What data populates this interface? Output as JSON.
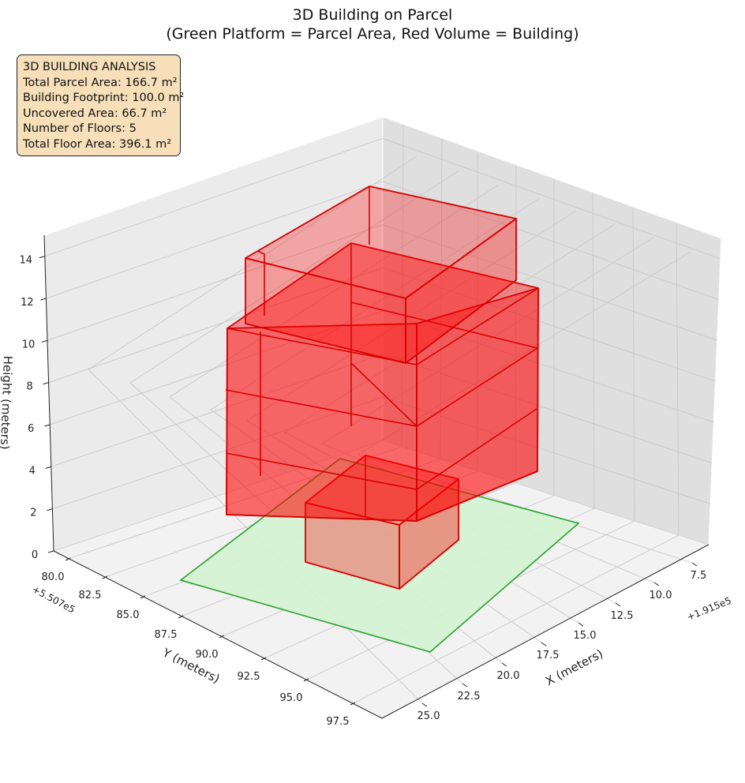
{
  "chart_data": {
    "type": "3d-bar",
    "title": "3D Building on Parcel",
    "subtitle": "(Green Platform = Parcel Area, Red Volume = Building)",
    "x_axis": {
      "label": "X (meters)",
      "offset": "+1.915e5",
      "ticks": [
        "7.5",
        "10.0",
        "12.5",
        "15.0",
        "17.5",
        "20.0",
        "22.5",
        "25.0"
      ]
    },
    "y_axis": {
      "label": "Y (meters)",
      "offset": "+5.507e5",
      "ticks": [
        "80.0",
        "82.5",
        "85.0",
        "87.5",
        "90.0",
        "92.5",
        "95.0",
        "97.5"
      ]
    },
    "z_axis": {
      "label": "Height (meters)",
      "ticks": [
        "0",
        "2",
        "4",
        "6",
        "8",
        "10",
        "12",
        "14"
      ],
      "zlim": [
        0,
        15
      ]
    },
    "parcel": {
      "color": "#2ca02c",
      "fill": "#d4f2d4"
    },
    "building_color": "#ff0000",
    "info_box": {
      "title": "3D BUILDING ANALYSIS",
      "lines": [
        "Total Parcel Area: 166.7 m²",
        "Building Footprint: 100.0 m²",
        "Uncovered Area: 66.7 m²",
        "Number of Floors: 5",
        "Total Floor Area: 396.1 m²"
      ]
    }
  }
}
